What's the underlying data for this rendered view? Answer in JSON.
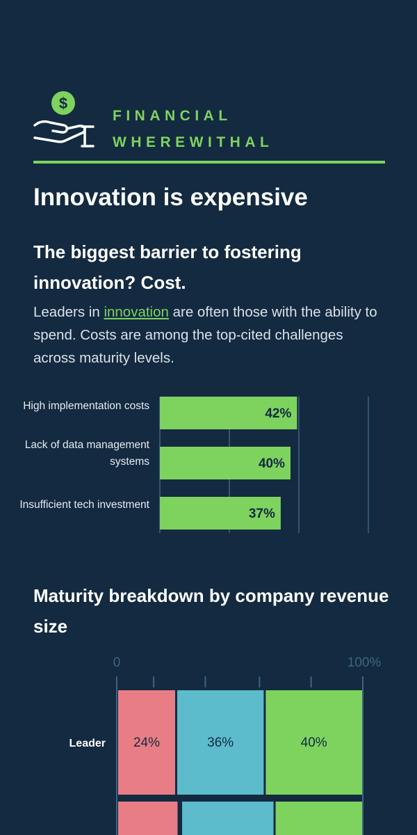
{
  "header": {
    "icon": "hand-holding-dollar-icon",
    "title_line1": "FINANCIAL",
    "title_line2": "WHEREWITHAL"
  },
  "headline": "Innovation is expensive",
  "subheadline": "The biggest barrier to fostering innovation? Cost.",
  "paragraph": {
    "before_link": "Leaders in ",
    "link_text": "innovation",
    "after_link": " are often those with the ability to spend. Costs are among the top-cited challenges across maturity levels."
  },
  "colors": {
    "background": "#132a40",
    "accent_green": "#7ed35f",
    "pink": "#e97d86",
    "teal": "#5cbccc"
  },
  "chart_data": [
    {
      "type": "bar",
      "orientation": "horizontal",
      "categories": [
        "High implementation costs",
        "Lack of data management systems",
        "Insufficient tech investment"
      ],
      "values": [
        42,
        40,
        37
      ],
      "value_labels": [
        "42%",
        "40%",
        "37%"
      ],
      "xlim": [
        0,
        60
      ]
    },
    {
      "type": "bar",
      "orientation": "horizontal",
      "stacked": true,
      "title": "Maturity breakdown by company revenue size",
      "axis_labels": [
        "0",
        "100%"
      ],
      "xlim": [
        0,
        100
      ],
      "categories": [
        "Leader"
      ],
      "series": [
        {
          "values": [
            24
          ],
          "labels": [
            "24%"
          ],
          "color": "#e97d86"
        },
        {
          "values": [
            36
          ],
          "labels": [
            "36%"
          ],
          "color": "#5cbccc"
        },
        {
          "values": [
            40
          ],
          "labels": [
            "40%"
          ],
          "color": "#7ed35f"
        }
      ]
    }
  ]
}
